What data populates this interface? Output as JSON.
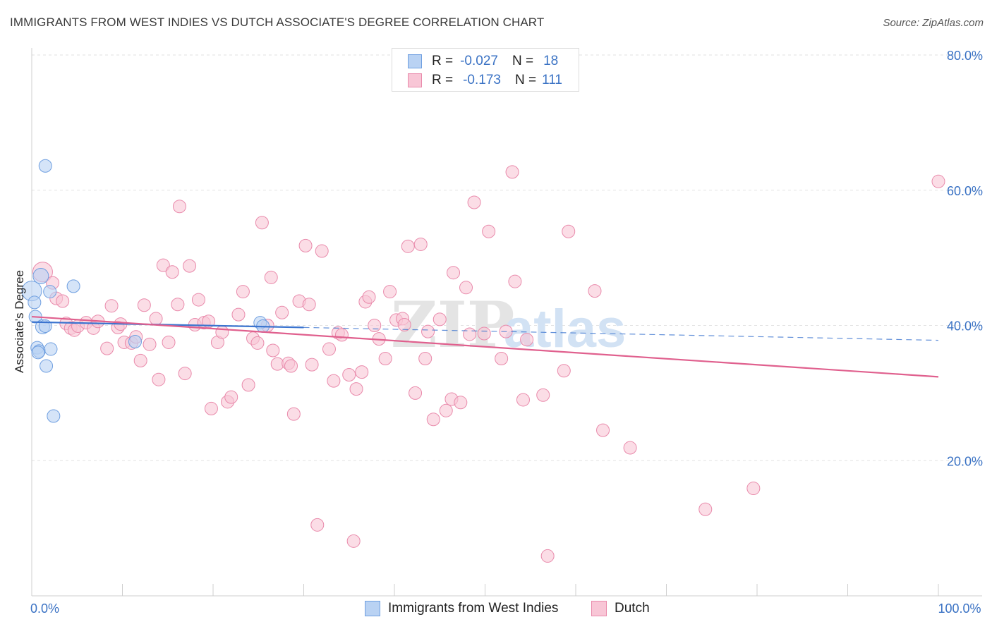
{
  "title": "IMMIGRANTS FROM WEST INDIES VS DUTCH ASSOCIATE'S DEGREE CORRELATION CHART",
  "source": "Source: ZipAtlas.com",
  "watermark": {
    "zip": "ZIP",
    "atlas": "atlas"
  },
  "legend": {
    "r_label": "R =",
    "n_label": "N =",
    "rows": [
      {
        "r": "-0.027",
        "n": "18",
        "fill": "#b9d2f3",
        "stroke": "#6f9fe0"
      },
      {
        "r": "-0.173",
        "n": "111",
        "fill": "#f8c6d6",
        "stroke": "#e98aab"
      }
    ]
  },
  "chart_data": {
    "type": "scatter",
    "title": "IMMIGRANTS FROM WEST INDIES VS DUTCH ASSOCIATE'S DEGREE CORRELATION CHART",
    "xlabel": "",
    "ylabel": "Associate's Degree",
    "xlim": [
      0,
      100
    ],
    "ylim": [
      0,
      80
    ],
    "x_tick_labels": [
      {
        "value": 0,
        "label": "0.0%"
      },
      {
        "value": 100,
        "label": "100.0%"
      }
    ],
    "y_tick_labels": [
      {
        "value": 20,
        "label": "20.0%"
      },
      {
        "value": 40,
        "label": "40.0%"
      },
      {
        "value": 60,
        "label": "60.0%"
      },
      {
        "value": 80,
        "label": "80.0%"
      }
    ],
    "x_minor_ticks": [
      10,
      20,
      30,
      40,
      50,
      60,
      70,
      80,
      90,
      100
    ],
    "grid": true,
    "series": [
      {
        "name": "Immigrants from West Indies",
        "color": "#6f9fe0",
        "fill": "#b9d2f3",
        "line_color": "#3b74cf",
        "trend": {
          "x0": 0,
          "y0": 40.5,
          "x1": 30,
          "y1": 39.7,
          "dash_to_x": 100,
          "dash_to_y": 37.8
        },
        "points": [
          [
            0.0,
            45.1,
            14
          ],
          [
            0.3,
            43.4,
            9
          ],
          [
            0.4,
            41.3,
            9
          ],
          [
            1.2,
            39.8,
            10
          ],
          [
            0.6,
            36.7,
            9
          ],
          [
            0.8,
            36.2,
            9
          ],
          [
            0.7,
            36.0,
            9
          ],
          [
            1.5,
            63.6,
            9
          ],
          [
            2.0,
            45.0,
            9
          ],
          [
            4.6,
            45.8,
            9
          ],
          [
            1.5,
            39.9,
            9
          ],
          [
            2.1,
            36.5,
            9
          ],
          [
            1.6,
            34.0,
            9
          ],
          [
            2.4,
            26.6,
            9
          ],
          [
            11.4,
            37.6,
            9
          ],
          [
            25.2,
            40.4,
            9
          ],
          [
            25.5,
            39.9,
            9
          ],
          [
            1.0,
            47.3,
            11
          ]
        ]
      },
      {
        "name": "Dutch",
        "color": "#e98aab",
        "fill": "#f8c6d6",
        "line_color": "#e0608e",
        "trend": {
          "x0": 0,
          "y0": 41.3,
          "x1": 100,
          "y1": 32.4
        },
        "points": [
          [
            1.2,
            47.9,
            14
          ],
          [
            2.3,
            46.3,
            9
          ],
          [
            2.7,
            44.0,
            9
          ],
          [
            3.4,
            43.6,
            9
          ],
          [
            3.8,
            40.3,
            9
          ],
          [
            4.3,
            39.6,
            9
          ],
          [
            4.7,
            39.3,
            9
          ],
          [
            5.1,
            39.9,
            9
          ],
          [
            6.0,
            40.4,
            9
          ],
          [
            6.8,
            39.6,
            9
          ],
          [
            7.3,
            40.6,
            9
          ],
          [
            8.3,
            36.6,
            9
          ],
          [
            8.8,
            42.9,
            9
          ],
          [
            9.5,
            39.7,
            9
          ],
          [
            9.8,
            40.2,
            9
          ],
          [
            10.2,
            37.5,
            9
          ],
          [
            11.0,
            37.4,
            9
          ],
          [
            11.5,
            38.3,
            9
          ],
          [
            12.0,
            34.8,
            9
          ],
          [
            12.4,
            43.0,
            9
          ],
          [
            13.0,
            37.2,
            9
          ],
          [
            13.7,
            41.0,
            9
          ],
          [
            14.0,
            32.0,
            9
          ],
          [
            14.5,
            48.9,
            9
          ],
          [
            15.1,
            37.5,
            9
          ],
          [
            15.5,
            47.9,
            9
          ],
          [
            16.1,
            43.1,
            9
          ],
          [
            16.3,
            57.6,
            9
          ],
          [
            16.9,
            32.9,
            9
          ],
          [
            17.4,
            48.8,
            9
          ],
          [
            18.0,
            40.1,
            9
          ],
          [
            18.4,
            43.8,
            9
          ],
          [
            19.0,
            40.4,
            9
          ],
          [
            19.5,
            40.6,
            9
          ],
          [
            19.8,
            27.7,
            9
          ],
          [
            20.5,
            37.5,
            9
          ],
          [
            21.0,
            39.0,
            9
          ],
          [
            21.6,
            28.7,
            9
          ],
          [
            22.0,
            29.4,
            9
          ],
          [
            22.8,
            41.6,
            9
          ],
          [
            23.3,
            45.0,
            9
          ],
          [
            23.9,
            31.2,
            9
          ],
          [
            24.4,
            38.1,
            9
          ],
          [
            24.9,
            37.4,
            9
          ],
          [
            25.4,
            55.2,
            9
          ],
          [
            26.0,
            40.0,
            9
          ],
          [
            26.4,
            47.1,
            9
          ],
          [
            26.6,
            36.3,
            9
          ],
          [
            27.1,
            34.3,
            9
          ],
          [
            27.6,
            41.9,
            9
          ],
          [
            28.3,
            34.4,
            9
          ],
          [
            28.6,
            34.0,
            9
          ],
          [
            28.9,
            26.9,
            9
          ],
          [
            29.5,
            43.6,
            9
          ],
          [
            30.2,
            51.8,
            9
          ],
          [
            30.6,
            43.1,
            9
          ],
          [
            30.9,
            34.2,
            9
          ],
          [
            31.5,
            10.5,
            9
          ],
          [
            32.0,
            51.0,
            9
          ],
          [
            32.8,
            36.5,
            9
          ],
          [
            33.3,
            31.8,
            9
          ],
          [
            33.8,
            38.9,
            9
          ],
          [
            34.2,
            38.6,
            9
          ],
          [
            35.0,
            32.7,
            9
          ],
          [
            35.5,
            8.1,
            9
          ],
          [
            35.8,
            30.6,
            9
          ],
          [
            36.4,
            33.1,
            9
          ],
          [
            36.8,
            43.5,
            9
          ],
          [
            37.2,
            44.2,
            9
          ],
          [
            37.8,
            40.0,
            9
          ],
          [
            38.3,
            38.0,
            9
          ],
          [
            39.0,
            35.1,
            9
          ],
          [
            39.5,
            45.0,
            9
          ],
          [
            40.2,
            40.8,
            9
          ],
          [
            40.9,
            41.0,
            9
          ],
          [
            41.1,
            40.1,
            9
          ],
          [
            41.5,
            51.7,
            9
          ],
          [
            42.3,
            30.0,
            9
          ],
          [
            42.9,
            52.0,
            9
          ],
          [
            43.4,
            35.1,
            9
          ],
          [
            43.7,
            39.1,
            9
          ],
          [
            44.3,
            26.1,
            9
          ],
          [
            45.0,
            40.9,
            9
          ],
          [
            45.7,
            27.4,
            9
          ],
          [
            46.3,
            29.1,
            9
          ],
          [
            46.5,
            47.8,
            9
          ],
          [
            47.3,
            28.6,
            9
          ],
          [
            47.9,
            45.6,
            9
          ],
          [
            48.3,
            38.7,
            9
          ],
          [
            48.8,
            58.2,
            9
          ],
          [
            49.9,
            38.8,
            9
          ],
          [
            50.4,
            53.9,
            9
          ],
          [
            51.8,
            35.1,
            9
          ],
          [
            52.3,
            39.1,
            9
          ],
          [
            53.0,
            62.7,
            9
          ],
          [
            53.3,
            46.5,
            9
          ],
          [
            54.2,
            29.0,
            9
          ],
          [
            54.6,
            37.9,
            9
          ],
          [
            56.4,
            29.7,
            9
          ],
          [
            58.7,
            33.3,
            9
          ],
          [
            59.2,
            53.9,
            9
          ],
          [
            62.1,
            45.1,
            9
          ],
          [
            63.0,
            24.5,
            9
          ],
          [
            66.0,
            21.9,
            9
          ],
          [
            56.9,
            5.9,
            9
          ],
          [
            74.3,
            12.8,
            9
          ],
          [
            79.6,
            15.9,
            9
          ],
          [
            100.0,
            61.3,
            9
          ]
        ]
      }
    ]
  },
  "bottom_legend": [
    {
      "label": "Immigrants from West Indies",
      "fill": "#b9d2f3",
      "stroke": "#6f9fe0"
    },
    {
      "label": "Dutch",
      "fill": "#f8c6d6",
      "stroke": "#e98aab"
    }
  ]
}
